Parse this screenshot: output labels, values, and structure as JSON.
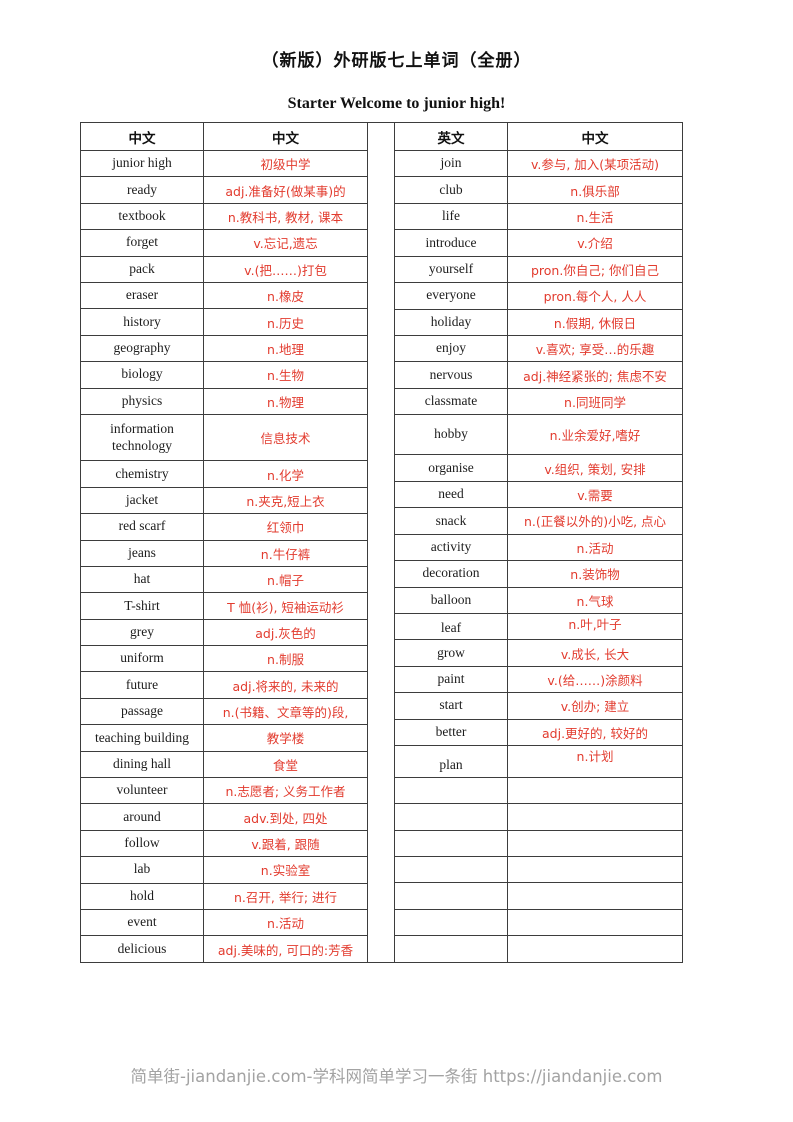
{
  "page": {
    "title": "（新版）外研版七上单词（全册）",
    "subtitle": "Starter Welcome to junior high!",
    "footer": "简单街-jiandanjie.com-学科网简单学习一条街 https://jiandanjie.com"
  },
  "colors": {
    "translation_red": "#e23b2e",
    "table_border": "#3d3d3d",
    "footer_gray": "#a3a3a3",
    "text_black": "#1c1c1c"
  },
  "left_table": {
    "headers": [
      "中文",
      "中文"
    ],
    "rows": [
      {
        "en": "junior high",
        "zh": "初级中学"
      },
      {
        "en": "ready",
        "zh": "adj.准备好(做某事)的"
      },
      {
        "en": "textbook",
        "zh": "n.教科书, 教材, 课本"
      },
      {
        "en": "forget",
        "zh": "v.忘记,遗忘"
      },
      {
        "en": "pack",
        "zh": "v.(把……)打包"
      },
      {
        "en": "eraser",
        "zh": "n.橡皮"
      },
      {
        "en": "history",
        "zh": "n.历史"
      },
      {
        "en": "geography",
        "zh": "n.地理"
      },
      {
        "en": "biology",
        "zh": "n.生物"
      },
      {
        "en": "physics",
        "zh": "n.物理"
      },
      {
        "en": "information technology",
        "zh": "信息技术"
      },
      {
        "en": "chemistry",
        "zh": "n.化学"
      },
      {
        "en": "jacket",
        "zh": "n.夹克,短上衣"
      },
      {
        "en": "red scarf",
        "zh": "红领巾"
      },
      {
        "en": "jeans",
        "zh": "n.牛仔裤"
      },
      {
        "en": "hat",
        "zh": "n.帽子"
      },
      {
        "en": "T-shirt",
        "zh": "T 恤(衫), 短袖运动衫"
      },
      {
        "en": "grey",
        "zh": "adj.灰色的"
      },
      {
        "en": "uniform",
        "zh": "n.制服"
      },
      {
        "en": "future",
        "zh": "adj.将来的, 未来的"
      },
      {
        "en": "passage",
        "zh": "n.(书籍、文章等的)段,"
      },
      {
        "en": "teaching building",
        "zh": "教学楼"
      },
      {
        "en": "dining hall",
        "zh": "食堂"
      },
      {
        "en": "volunteer",
        "zh": "n.志愿者; 义务工作者"
      },
      {
        "en": "around",
        "zh": "adv.到处, 四处"
      },
      {
        "en": "follow",
        "zh": "v.跟着, 跟随"
      },
      {
        "en": "lab",
        "zh": "n.实验室"
      },
      {
        "en": "hold",
        "zh": "n.召开, 举行; 进行"
      },
      {
        "en": "event",
        "zh": "n.活动"
      },
      {
        "en": "delicious",
        "zh": "adj.美味的, 可口的:芳香"
      }
    ],
    "empty_row_count": 0
  },
  "right_table": {
    "headers": [
      "英文",
      "中文"
    ],
    "rows": [
      {
        "en": "join",
        "zh": "v.参与, 加入(某项活动)"
      },
      {
        "en": "club",
        "zh": "n.俱乐部"
      },
      {
        "en": "life",
        "zh": "n.生活"
      },
      {
        "en": "introduce",
        "zh": "v.介绍"
      },
      {
        "en": "yourself",
        "zh": "pron.你自己; 你们自己"
      },
      {
        "en": "everyone",
        "zh": "pron.每个人, 人人"
      },
      {
        "en": "holiday",
        "zh": "n.假期, 休假日"
      },
      {
        "en": "enjoy",
        "zh": "v.喜欢; 享受…的乐趣"
      },
      {
        "en": "nervous",
        "zh": "adj.神经紧张的; 焦虑不安"
      },
      {
        "en": "classmate",
        "zh": "n.同班同学"
      },
      {
        "en": "hobby",
        "zh": "n.业余爱好,嗜好"
      },
      {
        "en": "organise",
        "zh": "v.组织, 策划, 安排"
      },
      {
        "en": "need",
        "zh": "v.需要"
      },
      {
        "en": "snack",
        "zh": "n.(正餐以外的)小吃, 点心"
      },
      {
        "en": "activity",
        "zh": "n.活动"
      },
      {
        "en": "decoration",
        "zh": "n.装饰物"
      },
      {
        "en": "balloon",
        "zh": "n.气球"
      },
      {
        "en": "leaf",
        "zh": "n.叶,叶子"
      },
      {
        "en": "grow",
        "zh": "v.成长, 长大"
      },
      {
        "en": "paint",
        "zh": "v.(给……)涂颜料"
      },
      {
        "en": "start",
        "zh": "v.创办; 建立"
      },
      {
        "en": "better",
        "zh": "adj.更好的, 较好的"
      },
      {
        "en": "plan",
        "zh": "n.计划"
      }
    ],
    "empty_row_count": 7
  }
}
